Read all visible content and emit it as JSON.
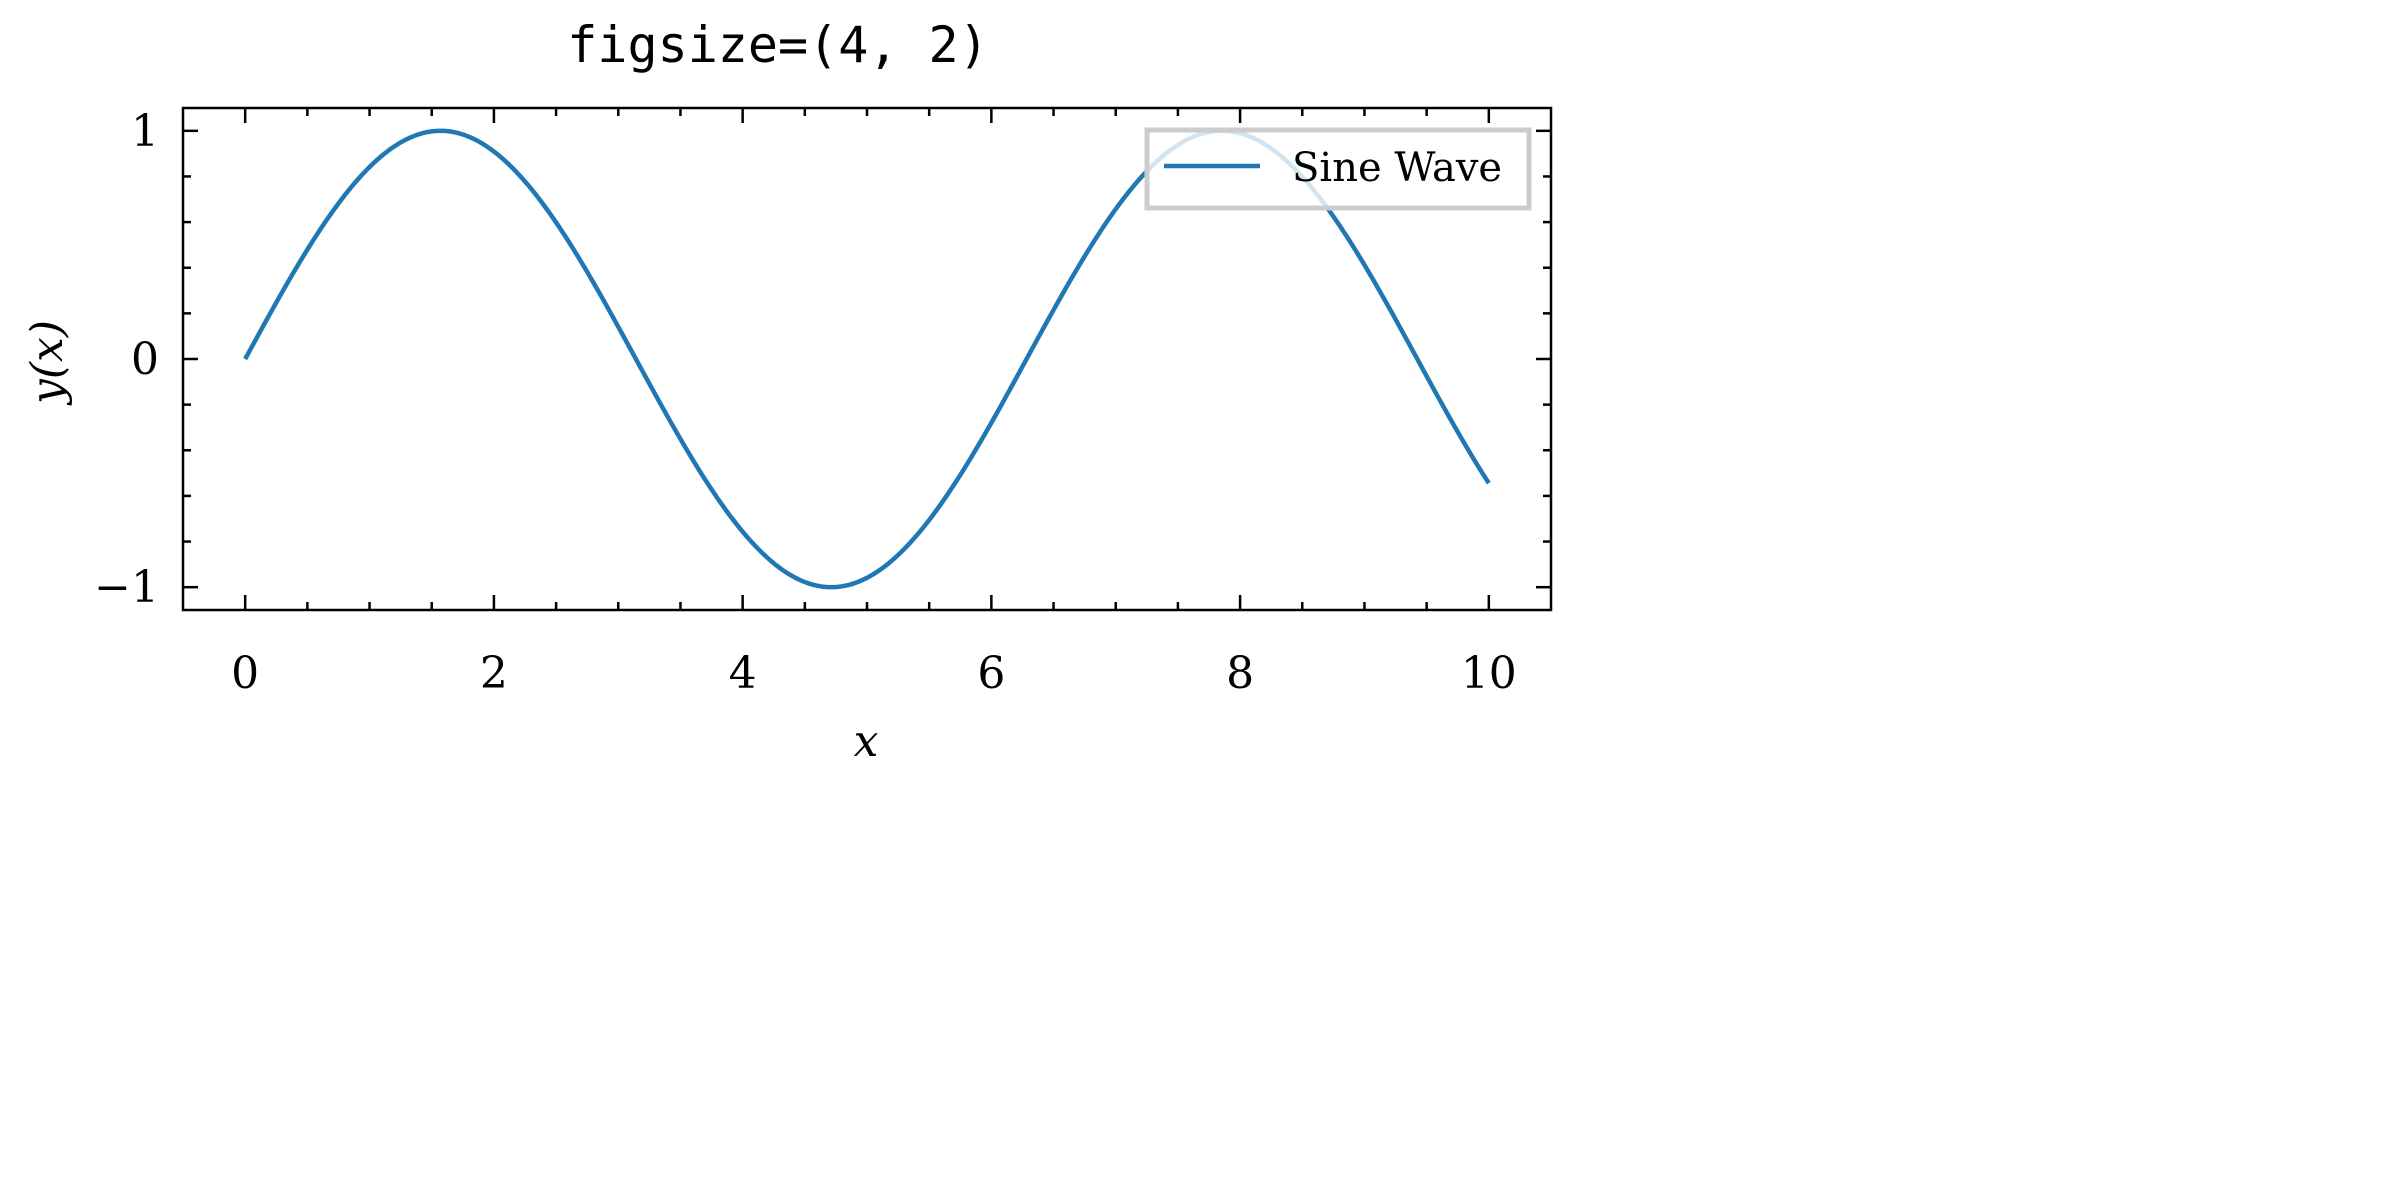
{
  "chart_data": {
    "type": "line",
    "title": "figsize=(4, 2)",
    "xlabel": "x",
    "ylabel": "y(x)",
    "xlim": [
      -0.5,
      10.5
    ],
    "ylim": [
      -1.1,
      1.1
    ],
    "xticks": [
      0,
      2,
      4,
      6,
      8,
      10
    ],
    "xtick_labels": [
      "0",
      "2",
      "4",
      "6",
      "8",
      "10"
    ],
    "yticks": [
      -1,
      0,
      1
    ],
    "ytick_labels": [
      "−1",
      "0",
      "1"
    ],
    "grid": false,
    "legend_position": "top-right",
    "series": [
      {
        "name": "Sine Wave",
        "color": "#1f77b4",
        "function": "sin(x)",
        "x_range": [
          0,
          10
        ],
        "x": [
          0,
          0.5,
          1,
          1.5708,
          2,
          2.5,
          3,
          3.5,
          4,
          4.7124,
          5,
          5.5,
          6,
          6.5,
          7,
          7.854,
          8,
          8.5,
          9,
          9.5,
          10
        ],
        "y": [
          0,
          0.479,
          0.841,
          1,
          0.909,
          0.598,
          0.141,
          -0.351,
          -0.757,
          -1,
          -0.959,
          -0.706,
          -0.279,
          0.215,
          0.657,
          1,
          0.989,
          0.798,
          0.412,
          -0.075,
          -0.544
        ]
      }
    ]
  }
}
